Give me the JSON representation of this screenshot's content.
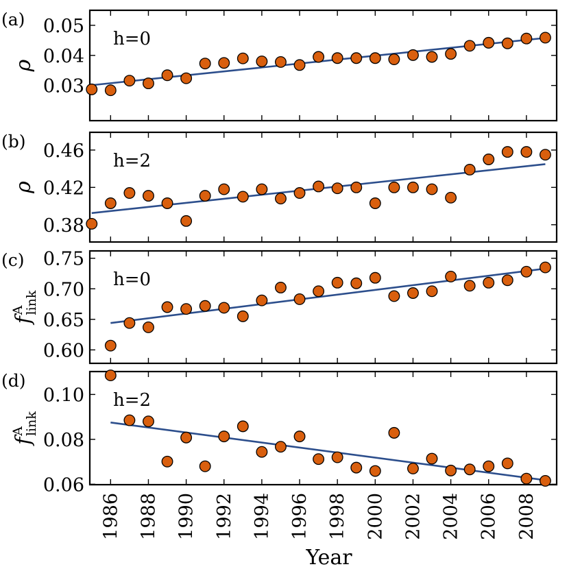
{
  "colors": {
    "marker": "#d95f0e",
    "fit_line": "#2c4e8c",
    "axis": "#000000"
  },
  "x_axis": {
    "title": "Year",
    "ticks": [
      1986,
      1988,
      1990,
      1992,
      1994,
      1996,
      1998,
      2000,
      2002,
      2004,
      2006,
      2008
    ],
    "tick_labels": [
      "1986",
      "1988",
      "1990",
      "1992",
      "1994",
      "1996",
      "1998",
      "2000",
      "2002",
      "2004",
      "2006",
      "2008"
    ],
    "range": [
      1984.9,
      2009.6
    ]
  },
  "chart_data": [
    {
      "type": "scatter",
      "panel": "(a)",
      "annotation": "h=0",
      "ylabel": "ρ",
      "ylim": [
        0.0183,
        0.055
      ],
      "yticks": [
        0.03,
        0.04,
        0.05
      ],
      "ytick_labels": [
        "0.03",
        "0.04",
        "0.05"
      ],
      "x": [
        1985,
        1986,
        1987,
        1988,
        1989,
        1990,
        1991,
        1992,
        1993,
        1994,
        1995,
        1996,
        1997,
        1998,
        1999,
        2000,
        2001,
        2002,
        2003,
        2004,
        2005,
        2006,
        2007,
        2008,
        2009
      ],
      "y": [
        0.0287,
        0.0284,
        0.0316,
        0.0307,
        0.0334,
        0.0324,
        0.0373,
        0.0375,
        0.039,
        0.038,
        0.0378,
        0.0368,
        0.0395,
        0.0391,
        0.0391,
        0.0391,
        0.0387,
        0.0401,
        0.0395,
        0.0405,
        0.0432,
        0.0442,
        0.044,
        0.0456,
        0.0459
      ],
      "fit": {
        "x": [
          1985,
          2009
        ],
        "y": [
          0.0301,
          0.0458
        ]
      }
    },
    {
      "type": "scatter",
      "panel": "(b)",
      "annotation": "h=2",
      "ylabel": "ρ",
      "ylim": [
        0.3615,
        0.479
      ],
      "yticks": [
        0.38,
        0.42,
        0.46
      ],
      "ytick_labels": [
        "0.38",
        "0.42",
        "0.46"
      ],
      "x": [
        1985,
        1986,
        1987,
        1988,
        1989,
        1990,
        1991,
        1992,
        1993,
        1994,
        1995,
        1996,
        1997,
        1998,
        1999,
        2000,
        2001,
        2002,
        2003,
        2004,
        2005,
        2006,
        2007,
        2008,
        2009
      ],
      "y": [
        0.381,
        0.403,
        0.414,
        0.411,
        0.403,
        0.384,
        0.411,
        0.418,
        0.41,
        0.418,
        0.408,
        0.414,
        0.421,
        0.419,
        0.42,
        0.403,
        0.42,
        0.42,
        0.418,
        0.409,
        0.439,
        0.45,
        0.458,
        0.458,
        0.455
      ],
      "fit": {
        "x": [
          1985,
          2009
        ],
        "y": [
          0.3925,
          0.4449
        ]
      }
    },
    {
      "type": "scatter",
      "panel": "(c)",
      "annotation": "h=0",
      "ylabel_main": "f",
      "ylabel_sup": "A",
      "ylabel_sub": "link",
      "ylim": [
        0.578,
        0.762
      ],
      "yticks": [
        0.6,
        0.65,
        0.7,
        0.75
      ],
      "ytick_labels": [
        "0.60",
        "0.65",
        "0.70",
        "0.75"
      ],
      "x": [
        1986,
        1987,
        1988,
        1989,
        1990,
        1991,
        1992,
        1993,
        1994,
        1995,
        1996,
        1997,
        1998,
        1999,
        2000,
        2001,
        2002,
        2003,
        2004,
        2005,
        2006,
        2007,
        2008,
        2009
      ],
      "y": [
        0.607,
        0.644,
        0.637,
        0.67,
        0.667,
        0.672,
        0.669,
        0.655,
        0.681,
        0.702,
        0.683,
        0.696,
        0.71,
        0.709,
        0.718,
        0.688,
        0.693,
        0.696,
        0.72,
        0.705,
        0.71,
        0.714,
        0.728,
        0.735
      ],
      "fit": {
        "x": [
          1986,
          2009
        ],
        "y": [
          0.644,
          0.733
        ]
      }
    },
    {
      "type": "scatter",
      "panel": "(d)",
      "annotation": "h=2",
      "ylabel_main": "f",
      "ylabel_sup": "A",
      "ylabel_sub": "link",
      "ylim": [
        0.0598,
        0.1102
      ],
      "yticks": [
        0.06,
        0.08,
        0.1
      ],
      "ytick_labels": [
        "0.06",
        "0.08",
        "0.10"
      ],
      "x": [
        1986,
        1987,
        1988,
        1989,
        1990,
        1991,
        1992,
        1993,
        1994,
        1995,
        1996,
        1997,
        1998,
        1999,
        2000,
        2001,
        2002,
        2003,
        2004,
        2005,
        2006,
        2007,
        2008,
        2009
      ],
      "y": [
        0.1085,
        0.0885,
        0.088,
        0.0701,
        0.0808,
        0.068,
        0.0813,
        0.0858,
        0.0744,
        0.0767,
        0.0813,
        0.0712,
        0.072,
        0.0674,
        0.0659,
        0.0829,
        0.067,
        0.0714,
        0.0661,
        0.0666,
        0.068,
        0.0693,
        0.0625,
        0.0615
      ],
      "fit": {
        "x": [
          1986,
          2009
        ],
        "y": [
          0.0875,
          0.0618
        ]
      }
    }
  ]
}
